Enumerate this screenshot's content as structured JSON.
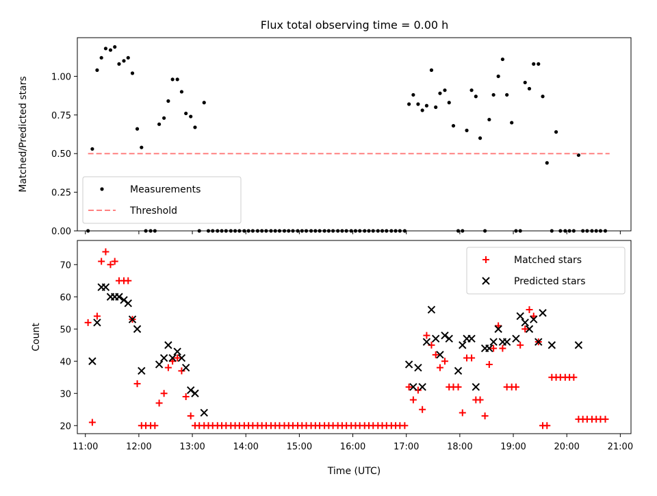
{
  "figure": {
    "title": "Flux total observing time = 0.00 h"
  },
  "chart_data": [
    {
      "type": "scatter",
      "title": "Flux total observing time = 0.00 h",
      "xlabel": "",
      "ylabel": "Matched/Predicted stars",
      "x_unit": "hour (UTC)",
      "xlim": [
        10.85,
        21.2
      ],
      "ylim": [
        0,
        1.25
      ],
      "yticks": [
        "0.00",
        "0.25",
        "0.50",
        "0.75",
        "1.00"
      ],
      "ytick_values": [
        0,
        0.25,
        0.5,
        0.75,
        1.0
      ],
      "legend": {
        "placement": "lower-left",
        "entries": [
          "Measurements",
          "Threshold"
        ]
      },
      "series": [
        {
          "name": "Measurements",
          "marker": "dot",
          "color": "#000000",
          "x": [
            11.05,
            11.13,
            11.22,
            11.3,
            11.38,
            11.47,
            11.55,
            11.63,
            11.72,
            11.8,
            11.88,
            11.97,
            12.05,
            12.13,
            12.22,
            12.3,
            12.38,
            12.47,
            12.55,
            12.63,
            12.72,
            12.8,
            12.88,
            12.97,
            13.05,
            13.13,
            13.22,
            13.3,
            13.38,
            13.47,
            13.55,
            13.63,
            13.72,
            13.8,
            13.88,
            13.97,
            14.05,
            14.13,
            14.22,
            14.3,
            14.38,
            14.47,
            14.55,
            14.63,
            14.72,
            14.8,
            14.88,
            14.97,
            15.05,
            15.13,
            15.22,
            15.3,
            15.38,
            15.47,
            15.55,
            15.63,
            15.72,
            15.8,
            15.88,
            15.97,
            16.05,
            16.13,
            16.22,
            16.3,
            16.38,
            16.47,
            16.55,
            16.63,
            16.72,
            16.8,
            16.88,
            16.97,
            17.05,
            17.13,
            17.22,
            17.3,
            17.38,
            17.47,
            17.55,
            17.63,
            17.72,
            17.8,
            17.88,
            17.97,
            18.05,
            18.13,
            18.22,
            18.3,
            18.38,
            18.47,
            18.55,
            18.63,
            18.72,
            18.8,
            18.88,
            18.97,
            19.05,
            19.13,
            19.22,
            19.3,
            19.38,
            19.47,
            19.55,
            19.63,
            19.72,
            19.8,
            19.88,
            19.97,
            20.05,
            20.13,
            20.22,
            20.3,
            20.38,
            20.47,
            20.55,
            20.63,
            20.72
          ],
          "y": [
            0.0,
            0.53,
            1.04,
            1.12,
            1.18,
            1.17,
            1.19,
            1.08,
            1.1,
            1.12,
            1.02,
            0.66,
            0.54,
            0.0,
            0.0,
            0.0,
            0.69,
            0.73,
            0.84,
            0.98,
            0.98,
            0.9,
            0.76,
            0.74,
            0.67,
            0.0,
            0.83,
            0.0,
            0.0,
            0.0,
            0.0,
            0.0,
            0.0,
            0.0,
            0.0,
            0.0,
            0.0,
            0.0,
            0.0,
            0.0,
            0.0,
            0.0,
            0.0,
            0.0,
            0.0,
            0.0,
            0.0,
            0.0,
            0.0,
            0.0,
            0.0,
            0.0,
            0.0,
            0.0,
            0.0,
            0.0,
            0.0,
            0.0,
            0.0,
            0.0,
            0.0,
            0.0,
            0.0,
            0.0,
            0.0,
            0.0,
            0.0,
            0.0,
            0.0,
            0.0,
            0.0,
            0.0,
            0.82,
            0.88,
            0.82,
            0.78,
            0.81,
            1.04,
            0.8,
            0.89,
            0.91,
            0.83,
            0.68,
            0.0,
            0.0,
            0.65,
            0.91,
            0.87,
            0.6,
            0.0,
            0.72,
            0.88,
            1.0,
            1.11,
            0.88,
            0.7,
            0.0,
            0.0,
            0.96,
            0.92,
            1.08,
            1.08,
            0.87,
            0.44,
            0.0,
            0.64,
            0.0,
            0.0,
            0.0,
            0.0,
            0.49,
            0.0,
            0.0,
            0.0,
            0.0,
            0.0,
            0.0
          ]
        },
        {
          "name": "Threshold",
          "marker": "dashed-line",
          "color": "#ff8080",
          "x": [
            11.05,
            20.8
          ],
          "y": [
            0.5,
            0.5
          ]
        }
      ]
    },
    {
      "type": "scatter",
      "title": "",
      "xlabel": "Time (UTC)",
      "ylabel": "Count",
      "x_unit": "hour (UTC)",
      "xlim": [
        10.85,
        21.2
      ],
      "ylim": [
        17.5,
        77.5
      ],
      "xticks": [
        "11:00",
        "12:00",
        "13:00",
        "14:00",
        "15:00",
        "16:00",
        "17:00",
        "18:00",
        "19:00",
        "20:00",
        "21:00"
      ],
      "xtick_values": [
        11,
        12,
        13,
        14,
        15,
        16,
        17,
        18,
        19,
        20,
        21
      ],
      "yticks": [
        "20",
        "30",
        "40",
        "50",
        "60",
        "70"
      ],
      "ytick_values": [
        20,
        30,
        40,
        50,
        60,
        70
      ],
      "legend": {
        "placement": "top-right",
        "entries": [
          "Matched stars",
          "Predicted stars"
        ]
      },
      "series": [
        {
          "name": "Matched stars",
          "marker": "plus",
          "color": "#ff0000",
          "x": [
            11.05,
            11.13,
            11.22,
            11.3,
            11.38,
            11.47,
            11.55,
            11.63,
            11.72,
            11.8,
            11.88,
            11.97,
            12.05,
            12.13,
            12.22,
            12.3,
            12.38,
            12.47,
            12.55,
            12.63,
            12.72,
            12.8,
            12.88,
            12.97,
            13.05,
            13.13,
            13.22,
            13.3,
            13.38,
            13.47,
            13.55,
            13.63,
            13.72,
            13.8,
            13.88,
            13.97,
            14.05,
            14.13,
            14.22,
            14.3,
            14.38,
            14.47,
            14.55,
            14.63,
            14.72,
            14.8,
            14.88,
            14.97,
            15.05,
            15.13,
            15.22,
            15.3,
            15.38,
            15.47,
            15.55,
            15.63,
            15.72,
            15.8,
            15.88,
            15.97,
            16.05,
            16.13,
            16.22,
            16.3,
            16.38,
            16.47,
            16.55,
            16.63,
            16.72,
            16.8,
            16.88,
            16.97,
            17.05,
            17.13,
            17.22,
            17.3,
            17.38,
            17.47,
            17.55,
            17.63,
            17.72,
            17.8,
            17.88,
            17.97,
            18.05,
            18.13,
            18.22,
            18.3,
            18.38,
            18.47,
            18.55,
            18.63,
            18.72,
            18.8,
            18.88,
            18.97,
            19.05,
            19.13,
            19.22,
            19.3,
            19.38,
            19.47,
            19.55,
            19.63,
            19.72,
            19.8,
            19.88,
            19.97,
            20.05,
            20.13,
            20.22,
            20.3,
            20.38,
            20.47,
            20.55,
            20.63,
            20.72
          ],
          "y": [
            52,
            21,
            54,
            71,
            74,
            70,
            71,
            65,
            65,
            65,
            53,
            33,
            20,
            20,
            20,
            20,
            27,
            30,
            38,
            40,
            41,
            37,
            29,
            23,
            20,
            20,
            20,
            20,
            20,
            20,
            20,
            20,
            20,
            20,
            20,
            20,
            20,
            20,
            20,
            20,
            20,
            20,
            20,
            20,
            20,
            20,
            20,
            20,
            20,
            20,
            20,
            20,
            20,
            20,
            20,
            20,
            20,
            20,
            20,
            20,
            20,
            20,
            20,
            20,
            20,
            20,
            20,
            20,
            20,
            20,
            20,
            20,
            32,
            28,
            31,
            25,
            48,
            45,
            42,
            38,
            40,
            32,
            32,
            32,
            24,
            41,
            41,
            28,
            28,
            23,
            39,
            44,
            51,
            44,
            32,
            32,
            32,
            45,
            50,
            56,
            54,
            46,
            20,
            20,
            35,
            35,
            35,
            35,
            35,
            35,
            22,
            22,
            22,
            22,
            22,
            22,
            22
          ]
        },
        {
          "name": "Predicted stars",
          "marker": "x",
          "color": "#000000",
          "x": [
            11.13,
            11.22,
            11.3,
            11.38,
            11.47,
            11.55,
            11.63,
            11.72,
            11.8,
            11.88,
            11.97,
            12.05,
            12.38,
            12.47,
            12.55,
            12.63,
            12.72,
            12.8,
            12.88,
            12.97,
            13.05,
            13.22,
            17.05,
            17.13,
            17.22,
            17.3,
            17.38,
            17.47,
            17.55,
            17.63,
            17.72,
            17.8,
            17.97,
            18.05,
            18.13,
            18.22,
            18.3,
            18.47,
            18.55,
            18.63,
            18.72,
            18.8,
            18.88,
            19.05,
            19.13,
            19.22,
            19.3,
            19.38,
            19.47,
            19.55,
            19.72,
            20.22
          ],
          "y": [
            40,
            52,
            63,
            63,
            60,
            60,
            60,
            59,
            58,
            53,
            50,
            37,
            39,
            41,
            45,
            41,
            43,
            41,
            38,
            31,
            30,
            24,
            39,
            32,
            38,
            32,
            46,
            56,
            47,
            42,
            48,
            47,
            37,
            45,
            47,
            47,
            32,
            44,
            44,
            46,
            50,
            46,
            46,
            47,
            54,
            52,
            50,
            53,
            46,
            55,
            45,
            45
          ]
        }
      ]
    }
  ]
}
